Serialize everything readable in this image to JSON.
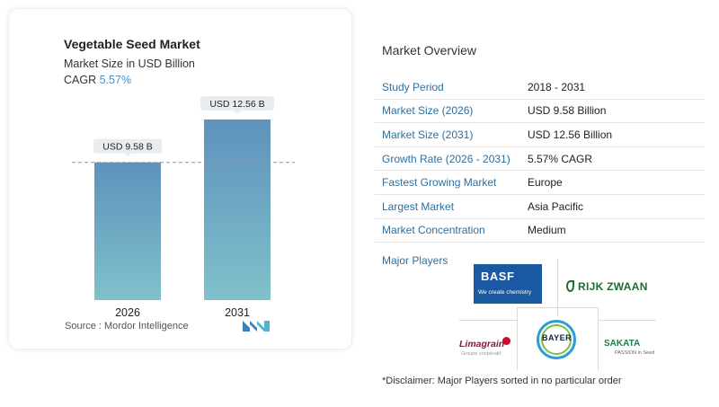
{
  "chart_data": {
    "type": "bar",
    "title": "Vegetable Seed Market",
    "subtitle": "Market Size in USD Billion",
    "cagr_label": "CAGR",
    "cagr_value": "5.57%",
    "categories": [
      "2026",
      "2031"
    ],
    "values": [
      9.58,
      12.56
    ],
    "data_labels": [
      "USD 9.58 B",
      "USD 12.56 B"
    ],
    "ylim": [
      0,
      13.5
    ],
    "reference_line": 9.58,
    "bar_color_top": "#5e92bc",
    "bar_color_bottom": "#7fc1cb",
    "source": "Source :  Mordor Intelligence"
  },
  "overview": {
    "title": "Market Overview",
    "rows": [
      {
        "key": "Study Period",
        "value": "2018 - 2031"
      },
      {
        "key": "Market Size (2026)",
        "value": "USD 9.58 Billion"
      },
      {
        "key": "Market Size (2031)",
        "value": "USD 12.56 Billion"
      },
      {
        "key": "Growth Rate (2026 - 2031)",
        "value": "5.57% CAGR"
      },
      {
        "key": "Fastest Growing Market",
        "value": "Europe"
      },
      {
        "key": "Largest Market",
        "value": "Asia Pacific"
      },
      {
        "key": "Market Concentration",
        "value": "Medium"
      }
    ]
  },
  "players": {
    "title": "Major Players",
    "basf": {
      "name": "BASF",
      "tagline": "We create chemistry"
    },
    "rijk_zwaan": {
      "name": "RIJK ZWAAN"
    },
    "bayer": {
      "name": "BAYER"
    },
    "limagrain": {
      "name": "Limagrain",
      "tagline": "Groupe coopératif"
    },
    "sakata": {
      "name": "SAKATA",
      "tagline": "PASSION in Seed"
    }
  },
  "disclaimer": "*Disclaimer: Major Players sorted in no particular order"
}
